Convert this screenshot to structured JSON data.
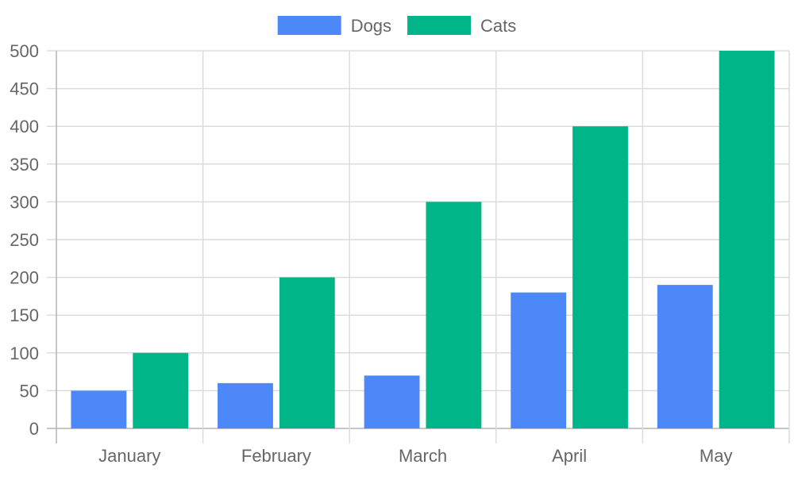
{
  "chart_data": {
    "type": "bar",
    "categories": [
      "January",
      "February",
      "March",
      "April",
      "May"
    ],
    "series": [
      {
        "name": "Dogs",
        "values": [
          50,
          60,
          70,
          180,
          190
        ],
        "color": "#4d88f9"
      },
      {
        "name": "Cats",
        "values": [
          100,
          200,
          300,
          400,
          500
        ],
        "color": "#00b689"
      }
    ],
    "title": "",
    "xlabel": "",
    "ylabel": "",
    "ylim": [
      0,
      500
    ],
    "ytick_step": 50,
    "grid": true,
    "legend_position": "top-center"
  }
}
